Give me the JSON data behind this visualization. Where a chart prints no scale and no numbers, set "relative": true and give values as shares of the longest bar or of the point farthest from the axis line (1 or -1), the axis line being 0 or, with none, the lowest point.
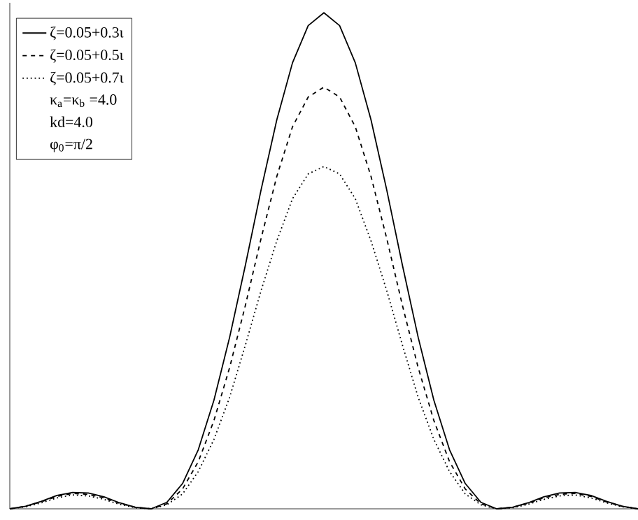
{
  "chart_data": {
    "type": "line",
    "relative": true,
    "legend": "top left",
    "categories": [
      null,
      null,
      null,
      null,
      null,
      null,
      null,
      null,
      null,
      null,
      null,
      null,
      null,
      null,
      null,
      null,
      null,
      null,
      null,
      null,
      null,
      null,
      null,
      null,
      null,
      null,
      null,
      null,
      null,
      null,
      null,
      null,
      null,
      null,
      null,
      null,
      null,
      null,
      null,
      null,
      null
    ],
    "series": [
      {
        "name": "ζ=0.05+0.3ι",
        "color": "#000000",
        "line_style": "solid",
        "values": [
          0,
          0.005,
          0.015,
          0.027,
          0.033,
          0.032,
          0.024,
          0.012,
          0.003,
          0,
          0.013,
          0.051,
          0.119,
          0.219,
          0.346,
          0.491,
          0.643,
          0.784,
          0.899,
          0.974,
          1,
          0.974,
          0.899,
          0.784,
          0.643,
          0.491,
          0.346,
          0.219,
          0.119,
          0.051,
          0.013,
          0,
          0.003,
          0.012,
          0.024,
          0.032,
          0.033,
          0.027,
          0.015,
          0.005,
          0
        ]
      },
      {
        "name": "ζ=0.05+0.5ι",
        "color": "#000000",
        "line_style": "dashed",
        "values": [
          0,
          0.005,
          0.014,
          0.025,
          0.031,
          0.029,
          0.022,
          0.011,
          0.003,
          0,
          0.01,
          0.04,
          0.095,
          0.178,
          0.285,
          0.41,
          0.545,
          0.67,
          0.77,
          0.83,
          0.85,
          0.83,
          0.77,
          0.67,
          0.545,
          0.41,
          0.285,
          0.178,
          0.095,
          0.04,
          0.01,
          0,
          0.003,
          0.011,
          0.022,
          0.029,
          0.031,
          0.025,
          0.014,
          0.005,
          0
        ]
      },
      {
        "name": "ζ=0.05+0.7ι",
        "color": "#000000",
        "line_style": "dotted",
        "values": [
          0,
          0.004,
          0.012,
          0.022,
          0.028,
          0.026,
          0.019,
          0.009,
          0.002,
          0,
          0.008,
          0.03,
          0.075,
          0.14,
          0.225,
          0.33,
          0.44,
          0.54,
          0.625,
          0.675,
          0.69,
          0.675,
          0.625,
          0.54,
          0.44,
          0.33,
          0.225,
          0.14,
          0.075,
          0.03,
          0.008,
          0,
          0.002,
          0.009,
          0.019,
          0.026,
          0.028,
          0.022,
          0.012,
          0.004,
          0
        ]
      }
    ],
    "annotations": [
      "κ$_{a}$=κ$_{b}$ =4.0",
      "kd=4.0",
      "φ$_{0}$=π/2"
    ]
  }
}
